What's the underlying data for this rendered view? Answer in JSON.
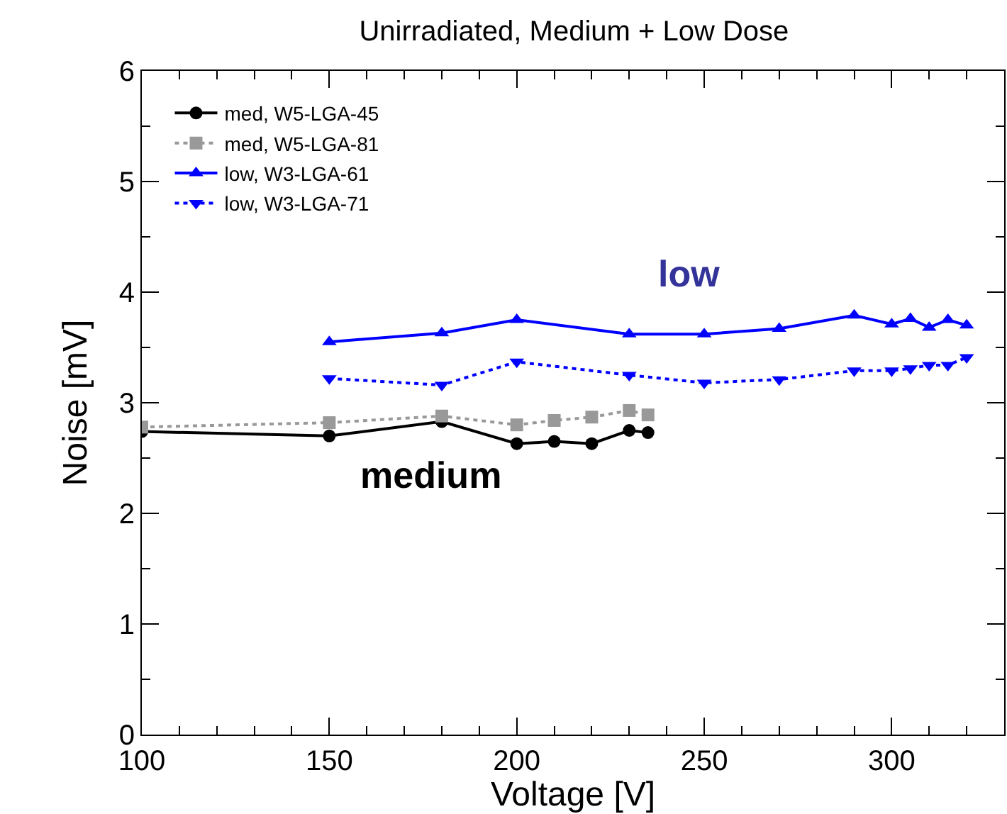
{
  "chart_data": {
    "type": "line",
    "title": "Unirradiated, Medium + Low Dose",
    "xlabel": "Voltage [V]",
    "ylabel": "Noise [mV]",
    "xlim": [
      100,
      330
    ],
    "xticks": [
      100,
      150,
      200,
      250,
      300
    ],
    "ylim": [
      0,
      6
    ],
    "yticks": [
      0,
      1,
      2,
      3,
      4,
      5,
      6
    ],
    "legend": "top left",
    "series": [
      {
        "name": "med, W5-LGA-45",
        "color": "#000000",
        "marker": "circle",
        "line_style": "solid",
        "x": [
          100,
          150,
          180,
          200,
          210,
          220,
          230,
          235
        ],
        "values": [
          2.74,
          2.7,
          2.83,
          2.63,
          2.65,
          2.63,
          2.75,
          2.73
        ]
      },
      {
        "name": "med, W5-LGA-81",
        "color": "#999999",
        "marker": "square",
        "line_style": "dotted",
        "x": [
          100,
          150,
          180,
          200,
          210,
          220,
          230,
          235
        ],
        "values": [
          2.78,
          2.82,
          2.88,
          2.8,
          2.84,
          2.87,
          2.93,
          2.89
        ]
      },
      {
        "name": "low, W3-LGA-61",
        "color": "#0000ff",
        "marker": "triangle",
        "line_style": "solid",
        "x": [
          150,
          180,
          200,
          230,
          250,
          270,
          290,
          300,
          305,
          310,
          315,
          320
        ],
        "values": [
          3.55,
          3.63,
          3.75,
          3.62,
          3.62,
          3.67,
          3.79,
          3.71,
          3.76,
          3.68,
          3.75,
          3.7
        ]
      },
      {
        "name": "low, W3-LGA-71",
        "color": "#0000ff",
        "marker": "triangle-down",
        "line_style": "dotted",
        "x": [
          150,
          180,
          200,
          230,
          250,
          270,
          290,
          300,
          305,
          310,
          315,
          320
        ],
        "values": [
          3.22,
          3.16,
          3.37,
          3.25,
          3.18,
          3.21,
          3.29,
          3.29,
          3.31,
          3.34,
          3.34,
          3.41
        ]
      }
    ],
    "annotations": [
      "low",
      "medium"
    ]
  }
}
